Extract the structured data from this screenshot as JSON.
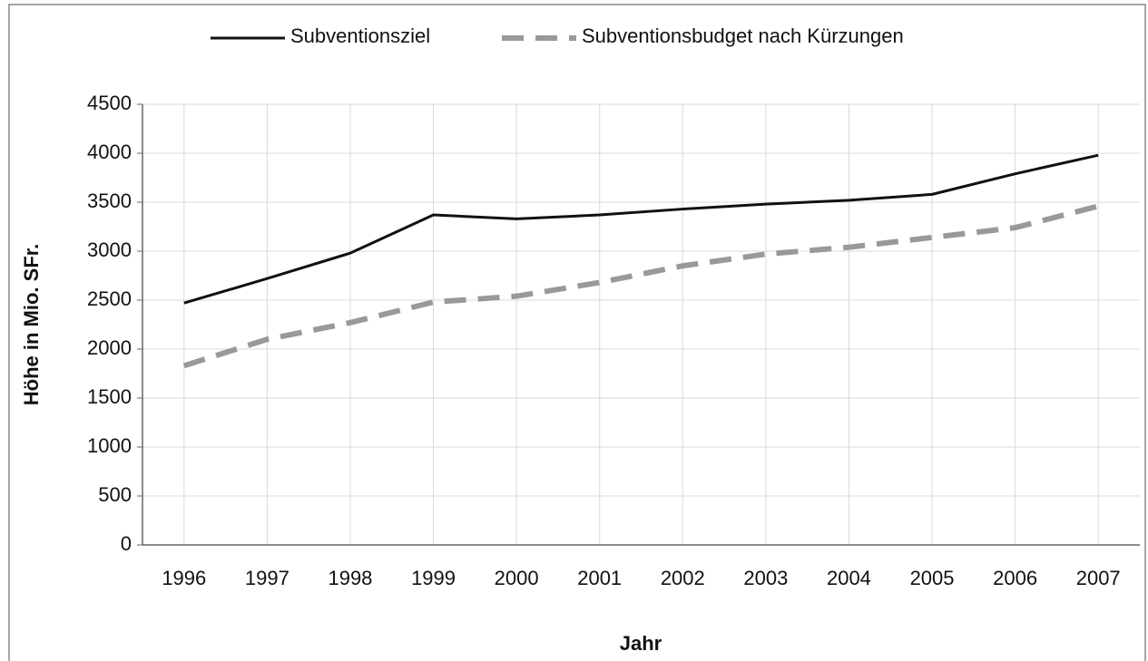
{
  "chart_data": {
    "type": "line",
    "x_label": "Jahr",
    "y_label": "Höhe in Mio. SFr.",
    "categories": [
      "1996",
      "1997",
      "1998",
      "1999",
      "2000",
      "2001",
      "2002",
      "2003",
      "2004",
      "2005",
      "2006",
      "2007"
    ],
    "series": [
      {
        "name": "Subventionsziel",
        "color": "#111111",
        "dashed": false,
        "values": [
          2470,
          2720,
          2980,
          3370,
          3330,
          3370,
          3430,
          3480,
          3520,
          3580,
          3790,
          3980
        ]
      },
      {
        "name": "Subventionsbudget nach Kürzungen",
        "color": "#999999",
        "dashed": true,
        "values": [
          1830,
          2100,
          2270,
          2480,
          2540,
          2680,
          2850,
          2970,
          3040,
          3140,
          3240,
          3460
        ]
      }
    ],
    "ylim": [
      0,
      4500
    ],
    "yticks": [
      0,
      500,
      1000,
      1500,
      2000,
      2500,
      3000,
      3500,
      4000,
      4500
    ],
    "grid": true,
    "legend": "top"
  }
}
